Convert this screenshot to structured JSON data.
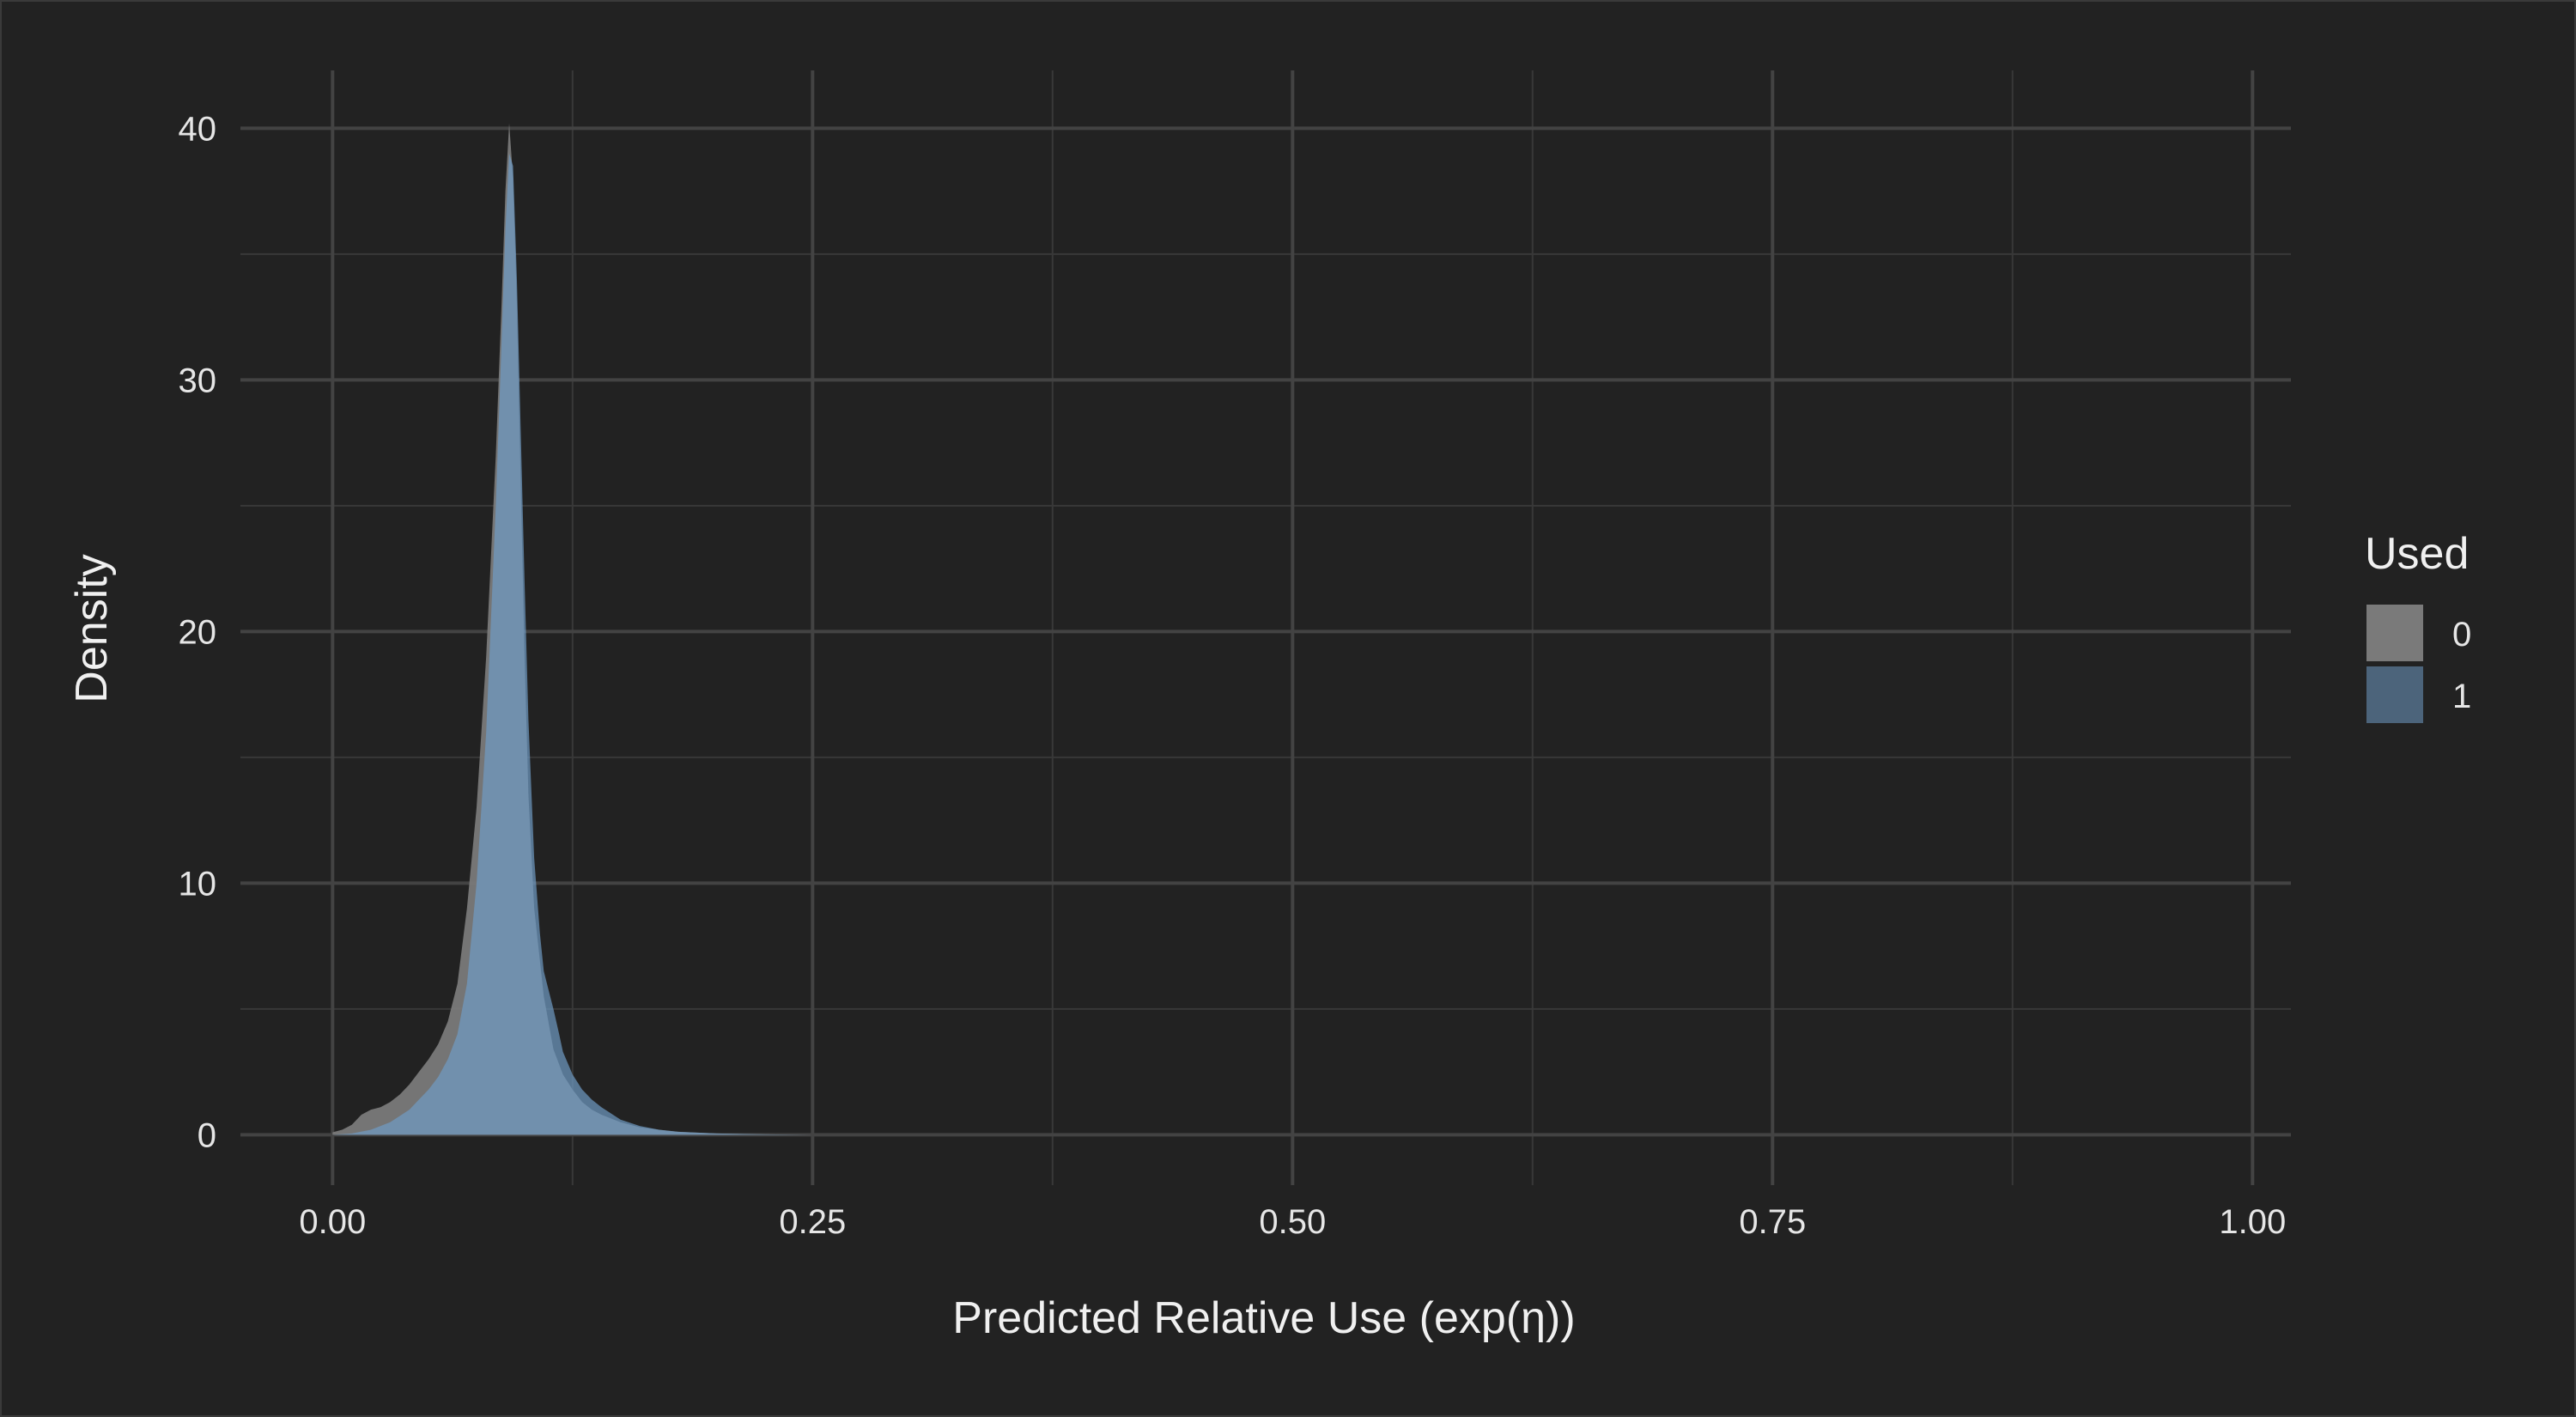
{
  "chart_data": {
    "type": "area",
    "title": "",
    "xlabel": "Predicted Relative Use (exp(η))",
    "ylabel": "Density",
    "xlim": [
      -0.048,
      1.02
    ],
    "ylim": [
      -2,
      42.3
    ],
    "x_ticks": [
      0.0,
      0.25,
      0.5,
      0.75,
      1.0
    ],
    "x_tick_labels": [
      "0.00",
      "0.25",
      "0.50",
      "0.75",
      "1.00"
    ],
    "x_minor_ticks": [
      0.125,
      0.375,
      0.625,
      0.875
    ],
    "y_ticks": [
      0,
      10,
      20,
      30,
      40
    ],
    "y_tick_labels": [
      "0",
      "10",
      "20",
      "30",
      "40"
    ],
    "y_minor_ticks": [
      5,
      15,
      25,
      35
    ],
    "grid": true,
    "legend": {
      "title": "Used",
      "position": "right"
    },
    "series": [
      {
        "name": "0",
        "color": "#7a7a7a",
        "opacity": 0.95,
        "x": [
          0.0,
          0.005,
          0.01,
          0.015,
          0.02,
          0.025,
          0.03,
          0.035,
          0.04,
          0.045,
          0.05,
          0.055,
          0.06,
          0.065,
          0.07,
          0.075,
          0.08,
          0.085,
          0.088,
          0.09,
          0.092,
          0.094,
          0.096,
          0.098,
          0.1,
          0.102,
          0.105,
          0.11,
          0.115,
          0.12,
          0.125,
          0.13,
          0.135,
          0.14,
          0.15,
          0.16,
          0.17,
          0.18,
          0.2,
          0.22,
          0.25
        ],
        "y": [
          0.1,
          0.2,
          0.4,
          0.8,
          1.0,
          1.1,
          1.3,
          1.6,
          2.0,
          2.5,
          3.0,
          3.6,
          4.5,
          6.0,
          9.0,
          13.0,
          19.0,
          27.0,
          33.0,
          37.5,
          40.2,
          38.0,
          33.0,
          26.0,
          19.0,
          13.5,
          9.0,
          5.5,
          3.4,
          2.4,
          1.8,
          1.3,
          1.0,
          0.8,
          0.5,
          0.3,
          0.2,
          0.12,
          0.05,
          0.02,
          0.0
        ]
      },
      {
        "name": "1",
        "color": "#6f9bc4",
        "opacity": 0.7,
        "x": [
          0.0,
          0.01,
          0.02,
          0.03,
          0.04,
          0.045,
          0.05,
          0.055,
          0.06,
          0.065,
          0.07,
          0.075,
          0.08,
          0.085,
          0.088,
          0.09,
          0.092,
          0.094,
          0.096,
          0.098,
          0.1,
          0.102,
          0.105,
          0.108,
          0.11,
          0.113,
          0.115,
          0.118,
          0.12,
          0.125,
          0.13,
          0.135,
          0.14,
          0.15,
          0.16,
          0.17,
          0.18,
          0.2,
          0.22,
          0.25
        ],
        "y": [
          0.0,
          0.05,
          0.2,
          0.5,
          1.0,
          1.4,
          1.8,
          2.3,
          3.0,
          4.0,
          6.0,
          10.0,
          16.0,
          25.0,
          31.5,
          36.0,
          39.0,
          38.5,
          34.0,
          28.0,
          22.0,
          16.5,
          11.0,
          8.0,
          6.5,
          5.6,
          5.0,
          4.0,
          3.3,
          2.4,
          1.8,
          1.4,
          1.1,
          0.6,
          0.35,
          0.2,
          0.12,
          0.05,
          0.02,
          0.0
        ]
      }
    ]
  }
}
